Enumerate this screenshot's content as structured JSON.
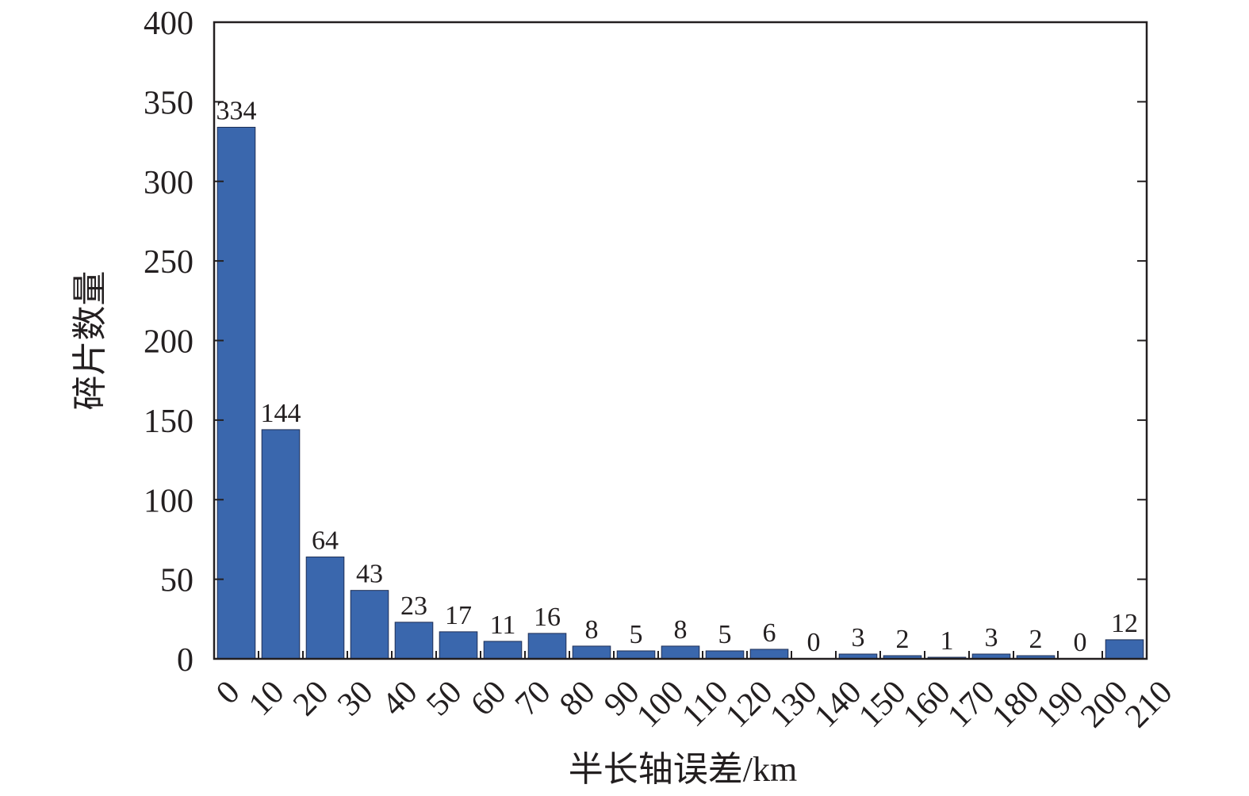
{
  "chart_data": {
    "type": "bar",
    "xlabel": "半长轴误差/km",
    "ylabel": "碎片数量",
    "ylim": [
      0,
      400
    ],
    "y_ticks": [
      0,
      50,
      100,
      150,
      200,
      250,
      300,
      350,
      400
    ],
    "xlim": [
      0,
      210
    ],
    "x_ticks": [
      0,
      10,
      20,
      30,
      40,
      50,
      60,
      70,
      80,
      90,
      100,
      110,
      120,
      130,
      140,
      150,
      160,
      170,
      180,
      190,
      200,
      210
    ],
    "bin_width": 10,
    "bins": [
      {
        "start": 0,
        "value": 334
      },
      {
        "start": 10,
        "value": 144
      },
      {
        "start": 20,
        "value": 64
      },
      {
        "start": 30,
        "value": 43
      },
      {
        "start": 40,
        "value": 23
      },
      {
        "start": 50,
        "value": 17
      },
      {
        "start": 60,
        "value": 11
      },
      {
        "start": 70,
        "value": 16
      },
      {
        "start": 80,
        "value": 8
      },
      {
        "start": 90,
        "value": 5
      },
      {
        "start": 100,
        "value": 8
      },
      {
        "start": 110,
        "value": 5
      },
      {
        "start": 120,
        "value": 6
      },
      {
        "start": 130,
        "value": 0
      },
      {
        "start": 140,
        "value": 3
      },
      {
        "start": 150,
        "value": 2
      },
      {
        "start": 160,
        "value": 1
      },
      {
        "start": 170,
        "value": 3
      },
      {
        "start": 180,
        "value": 2
      },
      {
        "start": 190,
        "value": 0
      },
      {
        "start": 200,
        "value": 12
      }
    ],
    "bar_color": "#3a67ad",
    "grid": false,
    "legend": "none"
  }
}
